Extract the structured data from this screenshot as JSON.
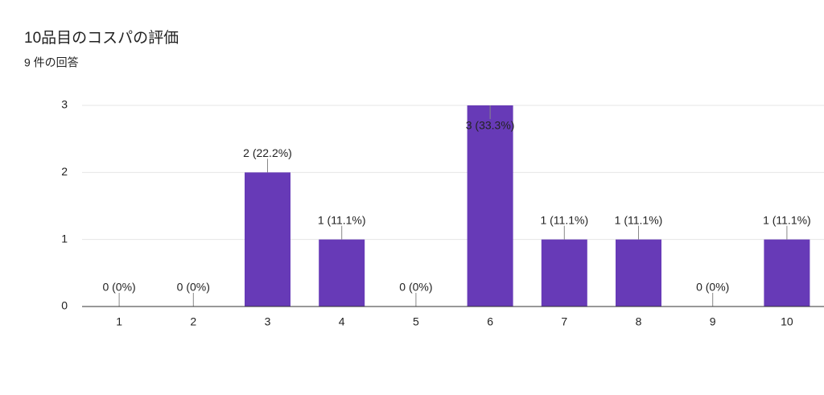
{
  "chart_data": {
    "type": "bar",
    "title": "10品目のコスパの評価",
    "subtitle": "9 件の回答",
    "categories": [
      "1",
      "2",
      "3",
      "4",
      "5",
      "6",
      "7",
      "8",
      "9",
      "10"
    ],
    "values": [
      0,
      0,
      2,
      1,
      0,
      3,
      1,
      1,
      0,
      1
    ],
    "value_labels": [
      "0 (0%)",
      "0 (0%)",
      "2 (22.2%)",
      "1 (11.1%)",
      "0 (0%)",
      "3 (33.3%)",
      "1 (11.1%)",
      "1 (11.1%)",
      "0 (0%)",
      "1 (11.1%)"
    ],
    "color": "#673ab7",
    "ylim": [
      0,
      3
    ],
    "yticks": [
      0,
      1,
      2,
      3
    ],
    "grid": true
  }
}
